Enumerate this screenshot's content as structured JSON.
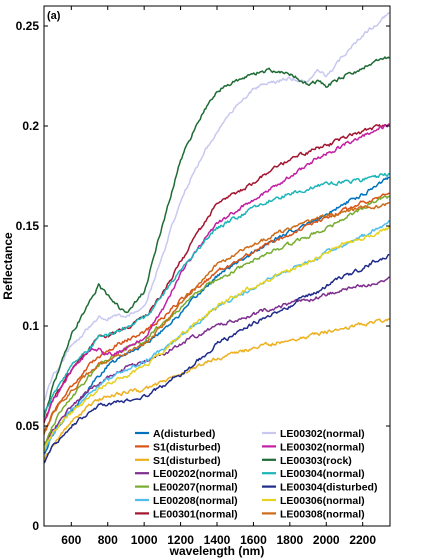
{
  "chart_data": {
    "type": "line",
    "panel_label": "(a)",
    "xlabel": "wavelength (nm)",
    "ylabel": "Reflectance",
    "xlim": [
      450,
      2350
    ],
    "ylim": [
      0,
      0.26
    ],
    "xticks": [
      600,
      800,
      1000,
      1200,
      1400,
      1600,
      1800,
      2000,
      2200
    ],
    "yticks": [
      0,
      0.05,
      0.1,
      0.15,
      0.2,
      0.25
    ],
    "ytick_labels": [
      "0",
      "0.05",
      "0.1",
      "0.15",
      "0.2",
      "0.25"
    ],
    "grid": false,
    "legend_position": "bottom-right",
    "x": [
      450,
      500,
      600,
      700,
      750,
      800,
      900,
      1000,
      1100,
      1200,
      1300,
      1400,
      1500,
      1600,
      1700,
      1800,
      1900,
      1950,
      2000,
      2100,
      2200,
      2300,
      2350
    ],
    "series": [
      {
        "name": "A(disturbed)",
        "color": "#0072BD",
        "values": [
          0.036,
          0.046,
          0.058,
          0.069,
          0.075,
          0.08,
          0.086,
          0.091,
          0.098,
          0.106,
          0.116,
          0.125,
          0.131,
          0.137,
          0.142,
          0.147,
          0.151,
          0.153,
          0.156,
          0.161,
          0.166,
          0.172,
          0.175
        ]
      },
      {
        "name": "S1(disturbed)",
        "color": "#D95319",
        "values": [
          0.047,
          0.057,
          0.07,
          0.08,
          0.085,
          0.088,
          0.093,
          0.097,
          0.104,
          0.113,
          0.12,
          0.127,
          0.132,
          0.137,
          0.142,
          0.146,
          0.15,
          0.152,
          0.154,
          0.158,
          0.162,
          0.165,
          0.166
        ]
      },
      {
        "name": "S1(disturbed)",
        "color": "#EDB120",
        "values": [
          0.033,
          0.041,
          0.052,
          0.06,
          0.063,
          0.065,
          0.067,
          0.068,
          0.072,
          0.076,
          0.08,
          0.084,
          0.086,
          0.089,
          0.091,
          0.093,
          0.095,
          0.096,
          0.097,
          0.099,
          0.101,
          0.103,
          0.104
        ]
      },
      {
        "name": "LE00202(normal)",
        "color": "#7E2F8E",
        "values": [
          0.04,
          0.048,
          0.06,
          0.068,
          0.071,
          0.074,
          0.079,
          0.082,
          0.086,
          0.091,
          0.096,
          0.1,
          0.103,
          0.106,
          0.109,
          0.111,
          0.113,
          0.114,
          0.116,
          0.118,
          0.12,
          0.123,
          0.124
        ]
      },
      {
        "name": "LE00207(normal)",
        "color": "#77AC30",
        "values": [
          0.04,
          0.051,
          0.064,
          0.075,
          0.08,
          0.083,
          0.089,
          0.093,
          0.101,
          0.109,
          0.117,
          0.123,
          0.128,
          0.133,
          0.137,
          0.141,
          0.145,
          0.147,
          0.149,
          0.154,
          0.159,
          0.164,
          0.165
        ]
      },
      {
        "name": "LE00208(normal)",
        "color": "#4DBEEE",
        "values": [
          0.037,
          0.046,
          0.058,
          0.066,
          0.07,
          0.073,
          0.078,
          0.082,
          0.088,
          0.095,
          0.102,
          0.109,
          0.114,
          0.119,
          0.124,
          0.128,
          0.132,
          0.134,
          0.137,
          0.141,
          0.145,
          0.15,
          0.152
        ]
      },
      {
        "name": "LE00301(normal)",
        "color": "#A2142F",
        "values": [
          0.051,
          0.063,
          0.078,
          0.089,
          0.094,
          0.095,
          0.099,
          0.104,
          0.116,
          0.132,
          0.147,
          0.161,
          0.166,
          0.172,
          0.178,
          0.183,
          0.187,
          0.189,
          0.19,
          0.194,
          0.197,
          0.2,
          0.201
        ]
      },
      {
        "name": "LE00302(normal)",
        "color": "#C8C8F0",
        "values": [
          0.062,
          0.075,
          0.09,
          0.1,
          0.104,
          0.104,
          0.105,
          0.11,
          0.135,
          0.163,
          0.182,
          0.198,
          0.209,
          0.218,
          0.222,
          0.224,
          0.222,
          0.227,
          0.225,
          0.236,
          0.245,
          0.253,
          0.257
        ]
      },
      {
        "name": "LE00302(normal)",
        "color": "#C21FA3",
        "values": [
          0.052,
          0.063,
          0.077,
          0.087,
          0.088,
          0.086,
          0.088,
          0.094,
          0.108,
          0.126,
          0.14,
          0.151,
          0.157,
          0.163,
          0.169,
          0.175,
          0.181,
          0.184,
          0.186,
          0.191,
          0.195,
          0.199,
          0.201
        ]
      },
      {
        "name": "LE00303(rock)",
        "color": "#1F6B35",
        "values": [
          0.055,
          0.07,
          0.096,
          0.112,
          0.12,
          0.115,
          0.106,
          0.117,
          0.15,
          0.183,
          0.203,
          0.218,
          0.222,
          0.226,
          0.228,
          0.226,
          0.221,
          0.222,
          0.22,
          0.225,
          0.229,
          0.234,
          0.234
        ]
      },
      {
        "name": "LE00304(normal)",
        "color": "#1CB5B8",
        "values": [
          0.056,
          0.066,
          0.08,
          0.089,
          0.094,
          0.095,
          0.099,
          0.104,
          0.115,
          0.128,
          0.139,
          0.149,
          0.154,
          0.159,
          0.163,
          0.166,
          0.169,
          0.17,
          0.171,
          0.172,
          0.173,
          0.175,
          0.176
        ]
      },
      {
        "name": "LE00304(disturbed)",
        "color": "#1F2B8A",
        "values": [
          0.032,
          0.04,
          0.05,
          0.057,
          0.06,
          0.061,
          0.063,
          0.065,
          0.07,
          0.076,
          0.083,
          0.091,
          0.096,
          0.101,
          0.106,
          0.11,
          0.115,
          0.117,
          0.12,
          0.125,
          0.129,
          0.134,
          0.136
        ]
      },
      {
        "name": "LE00306(normal)",
        "color": "#E6D21F",
        "values": [
          0.038,
          0.047,
          0.057,
          0.064,
          0.068,
          0.071,
          0.075,
          0.08,
          0.087,
          0.095,
          0.103,
          0.11,
          0.115,
          0.12,
          0.124,
          0.128,
          0.132,
          0.134,
          0.137,
          0.141,
          0.144,
          0.147,
          0.149
        ]
      },
      {
        "name": "LE00308(normal)",
        "color": "#CC6B1A",
        "values": [
          0.046,
          0.056,
          0.068,
          0.077,
          0.081,
          0.082,
          0.086,
          0.091,
          0.1,
          0.111,
          0.122,
          0.131,
          0.136,
          0.141,
          0.145,
          0.149,
          0.152,
          0.154,
          0.155,
          0.157,
          0.159,
          0.16,
          0.161
        ]
      }
    ]
  }
}
